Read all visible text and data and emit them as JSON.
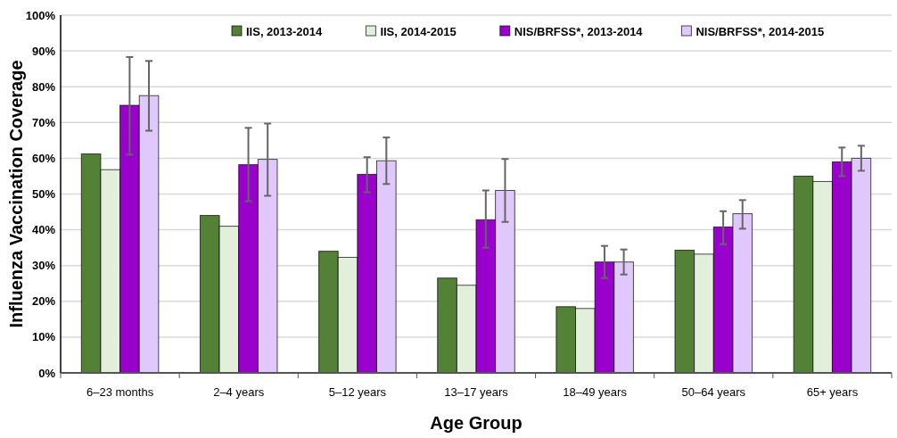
{
  "chart_data": {
    "type": "bar",
    "xlabel": "Age Group",
    "ylabel": "Influenza Vaccination Coverage",
    "categories": [
      "6–23 months",
      "2–4 years",
      "5–12 years",
      "13–17 years",
      "18–49 years",
      "50–64 years",
      "65+ years"
    ],
    "series": [
      {
        "name": "IIS, 2013-2014",
        "color": "#538135",
        "values": [
          61.2,
          44,
          34,
          26.5,
          18.5,
          34.3,
          55
        ]
      },
      {
        "name": "IIS, 2014-2015",
        "color": "#e2efda",
        "values": [
          56.8,
          41,
          32.3,
          24.5,
          18,
          33.2,
          53.5
        ]
      },
      {
        "name": "NIS/BRFSS*, 2013-2014",
        "color": "#9900cc",
        "values": [
          74.8,
          58.2,
          55.5,
          42.8,
          31,
          40.8,
          59
        ],
        "errors": [
          [
            61,
            88.3
          ],
          [
            48,
            68.5
          ],
          [
            50.5,
            60.3
          ],
          [
            35,
            51
          ],
          [
            26.5,
            35.5
          ],
          [
            36,
            45.2
          ],
          [
            55,
            63
          ]
        ]
      },
      {
        "name": "NIS/BRFSS*, 2014-2015",
        "color": "#e0c8fc",
        "values": [
          77.5,
          59.7,
          59.3,
          51,
          31,
          44.5,
          60
        ],
        "errors": [
          [
            67.7,
            87.2
          ],
          [
            49.5,
            69.7
          ],
          [
            52.8,
            65.8
          ],
          [
            42.2,
            59.8
          ],
          [
            27.5,
            34.5
          ],
          [
            40.3,
            48.3
          ],
          [
            56.5,
            63.5
          ]
        ]
      }
    ],
    "ylim": [
      0,
      100
    ],
    "yticks": [
      {
        "value": 0,
        "label": "0%"
      },
      {
        "value": 10,
        "label": "10%"
      },
      {
        "value": 20,
        "label": "20%"
      },
      {
        "value": 30,
        "label": "30%"
      },
      {
        "value": 40,
        "label": "40%"
      },
      {
        "value": 50,
        "label": "50%"
      },
      {
        "value": 60,
        "label": "60%"
      },
      {
        "value": 70,
        "label": "70%"
      },
      {
        "value": 80,
        "label": "80%"
      },
      {
        "value": 90,
        "label": "90%"
      },
      {
        "value": 100,
        "label": "100%"
      }
    ],
    "grid": "y",
    "legend": "top"
  }
}
